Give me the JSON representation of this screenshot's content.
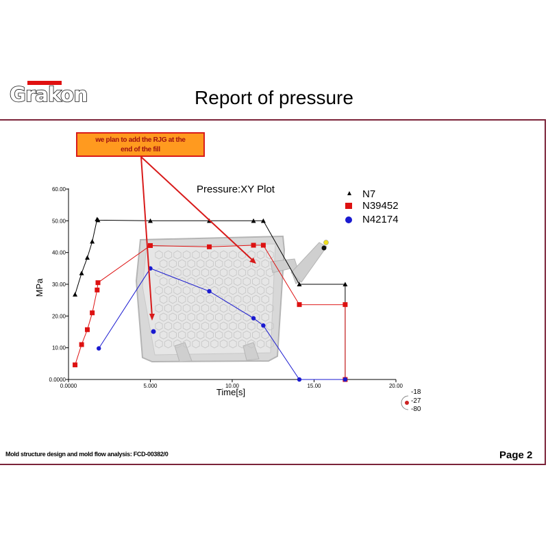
{
  "header": {
    "logo_text": "Grakon",
    "title": "Report of pressure"
  },
  "callout": {
    "line1": "we plan to add the RJG at the",
    "line2": "end of the fill"
  },
  "footer": {
    "left": "Mold structure design and mold flow analysis: FCD-00382/0",
    "page": "Page  2"
  },
  "scale_legend": {
    "labels": [
      "-18",
      "-27",
      "-80"
    ]
  },
  "colors": {
    "N7": "#000000",
    "N39452": "#dd1111",
    "N42174": "#1a1ad0",
    "frame": "#7a2238",
    "callout_fill": "#ff9a1f",
    "callout_border": "#d81a1a"
  },
  "chart_data": {
    "type": "line",
    "title": "Pressure:XY Plot",
    "xlabel": "Time[s]",
    "ylabel": "MPa",
    "xlim": [
      0,
      20
    ],
    "ylim": [
      0,
      60
    ],
    "xticks": [
      "0.0000",
      "5.000",
      "10.00",
      "15.00",
      "20.00"
    ],
    "yticks": [
      "0.0000",
      "10.00",
      "20.00",
      "30.00",
      "40.00",
      "50.00",
      "60.00"
    ],
    "grid": false,
    "legend_position": "top-right",
    "series": [
      {
        "name": "N7",
        "marker": "triangle",
        "color": "#000000",
        "points": [
          [
            0.4,
            26.8
          ],
          [
            0.8,
            33.5
          ],
          [
            1.15,
            38.4
          ],
          [
            1.45,
            43.5
          ],
          [
            1.75,
            50.5
          ],
          [
            1.8,
            50.2
          ],
          [
            5.0,
            50.0
          ],
          [
            8.6,
            50.0
          ],
          [
            11.3,
            50.0
          ],
          [
            11.9,
            50.0
          ],
          [
            14.1,
            30.0
          ],
          [
            16.9,
            30.0
          ],
          [
            16.9,
            0.0
          ]
        ]
      },
      {
        "name": "N39452",
        "marker": "square",
        "color": "#dd1111",
        "points": [
          [
            0.4,
            4.6
          ],
          [
            0.8,
            11.0
          ],
          [
            1.15,
            15.7
          ],
          [
            1.45,
            21.0
          ],
          [
            1.75,
            28.2
          ],
          [
            1.8,
            30.5
          ],
          [
            5.0,
            42.2
          ],
          [
            8.6,
            41.8
          ],
          [
            11.3,
            42.3
          ],
          [
            11.9,
            42.3
          ],
          [
            14.1,
            23.6
          ],
          [
            16.9,
            23.6
          ],
          [
            16.9,
            0.0
          ]
        ]
      },
      {
        "name": "N42174",
        "marker": "circle",
        "color": "#1a1ad0",
        "points": [
          [
            1.85,
            9.8
          ],
          [
            5.0,
            35.0
          ],
          [
            8.6,
            27.8
          ],
          [
            11.3,
            19.3
          ],
          [
            11.9,
            17.0
          ],
          [
            14.1,
            0.0
          ],
          [
            16.9,
            0.0
          ]
        ]
      }
    ]
  }
}
